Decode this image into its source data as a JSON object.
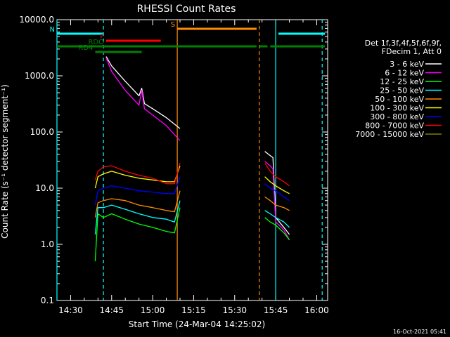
{
  "chart_data": {
    "type": "line",
    "title": "RHESSI Count Rates",
    "xlabel": "Start Time (24-Mar-04 14:25:02)",
    "ylabel": "Count Rate (s⁻¹ detector segment⁻¹)",
    "yscale": "log",
    "ylim": [
      0.1,
      10000
    ],
    "xlim": [
      "14:25",
      "16:04"
    ],
    "x_ticks": [
      "14:30",
      "14:45",
      "15:00",
      "15:15",
      "15:30",
      "15:45",
      "16:00"
    ],
    "y_ticks": [
      "0.1",
      "1.0",
      "10.0",
      "100.0",
      "1000.0",
      "10000.0"
    ],
    "legend_header": [
      "Det 1f,3f,4f,5f,6f,9f,",
      "FDecim 1, Att 0"
    ],
    "legend_placement": "right",
    "series": [
      {
        "name": "3 - 6 keV",
        "color": "#ffffff",
        "segments": [
          {
            "x": [
              "14:43",
              "14:45",
              "14:50",
              "14:55",
              "14:56",
              "14:57",
              "15:00",
              "15:05",
              "15:10"
            ],
            "y": [
              2200,
              1500,
              800,
              440,
              600,
              320,
              260,
              180,
              115
            ]
          },
          {
            "x": [
              "15:41",
              "15:43",
              "15:44",
              "15:45",
              "15:48",
              "15:50"
            ],
            "y": [
              45,
              38,
              35,
              3,
              2,
              1.5
            ]
          }
        ]
      },
      {
        "name": "6 - 12 keV",
        "color": "#ff00ff",
        "segments": [
          {
            "x": [
              "14:43",
              "14:45",
              "14:50",
              "14:55",
              "14:56",
              "14:57",
              "15:00",
              "15:05",
              "15:10"
            ],
            "y": [
              2100,
              1200,
              550,
              300,
              550,
              260,
              200,
              130,
              70
            ]
          },
          {
            "x": [
              "15:41",
              "15:43",
              "15:44",
              "15:45",
              "15:48",
              "15:50"
            ],
            "y": [
              30,
              25,
              22,
              2.5,
              1.8,
              1.2
            ]
          }
        ]
      },
      {
        "name": "12 - 25 keV",
        "color": "#00ff00",
        "segments": [
          {
            "x": [
              "14:39",
              "14:40",
              "14:42",
              "14:45",
              "14:50",
              "14:55",
              "15:00",
              "15:05",
              "15:08",
              "15:10"
            ],
            "y": [
              0.5,
              3.5,
              3,
              3.5,
              2.8,
              2.3,
              2,
              1.7,
              1.6,
              4.5
            ]
          },
          {
            "x": [
              "15:41",
              "15:43",
              "15:45",
              "15:48",
              "15:50"
            ],
            "y": [
              3,
              2.5,
              2.2,
              1.6,
              1.2
            ]
          }
        ]
      },
      {
        "name": "25 - 50 keV",
        "color": "#00ffff",
        "segments": [
          {
            "x": [
              "14:39",
              "14:40",
              "14:42",
              "14:45",
              "14:50",
              "14:55",
              "15:00",
              "15:05",
              "15:08",
              "15:10"
            ],
            "y": [
              1.5,
              4.5,
              4.5,
              5,
              4.2,
              3.5,
              3,
              2.8,
              2.5,
              6
            ]
          },
          {
            "x": [
              "15:41",
              "15:43",
              "15:45",
              "15:48",
              "15:50"
            ],
            "y": [
              4,
              3.5,
              3,
              2.5,
              2
            ]
          }
        ]
      },
      {
        "name": "50 - 100 keV",
        "color": "#ff8c00",
        "segments": [
          {
            "x": [
              "14:39",
              "14:40",
              "14:42",
              "14:45",
              "14:50",
              "14:55",
              "15:00",
              "15:05",
              "15:08",
              "15:10"
            ],
            "y": [
              3,
              5.5,
              6,
              6.5,
              6,
              5,
              4.5,
              4,
              3.8,
              9
            ]
          },
          {
            "x": [
              "15:41",
              "15:43",
              "15:45",
              "15:48",
              "15:50"
            ],
            "y": [
              7,
              6,
              5,
              4.5,
              4
            ]
          }
        ]
      },
      {
        "name": "100 - 300 keV",
        "color": "#ffff00",
        "segments": [
          {
            "x": [
              "14:39",
              "14:40",
              "14:42",
              "14:45",
              "14:50",
              "14:55",
              "15:00",
              "15:05",
              "15:08",
              "15:10"
            ],
            "y": [
              10,
              16,
              18,
              20,
              17,
              15,
              14,
              13,
              13,
              25
            ]
          },
          {
            "x": [
              "15:41",
              "15:43",
              "15:45",
              "15:48",
              "15:50"
            ],
            "y": [
              16,
              13,
              11,
              9,
              8
            ]
          }
        ]
      },
      {
        "name": "300 - 800 keV",
        "color": "#0000ff",
        "segments": [
          {
            "x": [
              "14:39",
              "14:40",
              "14:42",
              "14:45",
              "14:50",
              "14:55",
              "15:00",
              "15:05",
              "15:08",
              "15:10"
            ],
            "y": [
              5,
              9,
              10,
              11,
              10,
              9,
              8.5,
              8,
              8,
              16
            ]
          },
          {
            "x": [
              "15:41",
              "15:43",
              "15:45",
              "15:48",
              "15:50"
            ],
            "y": [
              12,
              10,
              9,
              7,
              6
            ]
          }
        ]
      },
      {
        "name": "800 - 7000 keV",
        "color": "#ff0000",
        "segments": [
          {
            "x": [
              "14:39",
              "14:40",
              "14:42",
              "14:45",
              "14:50",
              "14:55",
              "15:00",
              "15:05",
              "15:08",
              "15:10"
            ],
            "y": [
              14,
              20,
              24,
              25,
              20,
              17,
              15,
              12,
              12,
              28
            ]
          },
          {
            "x": [
              "15:41",
              "15:43",
              "15:45",
              "15:48",
              "15:50"
            ],
            "y": [
              28,
              20,
              16,
              13,
              11
            ]
          }
        ]
      },
      {
        "name": "7000 - 15000 keV",
        "color": "#808000",
        "segments": []
      }
    ],
    "attenuator_bars": [
      {
        "label": "N",
        "color": "#00ffff",
        "row": "top",
        "x": [
          "14:25",
          "14:42"
        ]
      },
      {
        "label": "",
        "color": "#00ffff",
        "row": "top",
        "x": [
          "15:46",
          "16:03"
        ]
      },
      {
        "label": "F",
        "color": "#ff0000",
        "row": "mid",
        "x": [
          "14:43",
          "15:03"
        ]
      },
      {
        "label": "S",
        "color": "#ff8c00",
        "row": "highest",
        "x": [
          "15:09",
          "15:38"
        ]
      },
      {
        "label": "",
        "color": "#008000",
        "row": "low",
        "x": [
          "14:25",
          "15:38"
        ]
      },
      {
        "label": "",
        "color": "#008000",
        "row": "low",
        "x": [
          "15:39",
          "15:42"
        ]
      },
      {
        "label": "",
        "color": "#008000",
        "row": "low",
        "x": [
          "15:43",
          "16:03"
        ]
      },
      {
        "label": "RDO",
        "color": "#008000",
        "row": "midlow",
        "x": [
          "14:43",
          "14:56"
        ]
      },
      {
        "label": "RD4",
        "color": "#008000",
        "row": "lowest",
        "x": [
          "14:39",
          "14:56"
        ]
      }
    ],
    "vertical_lines": [
      {
        "x": "14:25",
        "color": "#00ffff",
        "style": "solid"
      },
      {
        "x": "14:42",
        "color": "#00ffff",
        "style": "dashed"
      },
      {
        "x": "15:09",
        "color": "#ff8c00",
        "style": "solid"
      },
      {
        "x": "15:39",
        "color": "#ff8c00",
        "style": "dashed"
      },
      {
        "x": "15:45",
        "color": "#00ffff",
        "style": "solid"
      },
      {
        "x": "16:02",
        "color": "#00ffff",
        "style": "dashed"
      }
    ]
  },
  "timestamp": "16-Oct-2021 05:41"
}
